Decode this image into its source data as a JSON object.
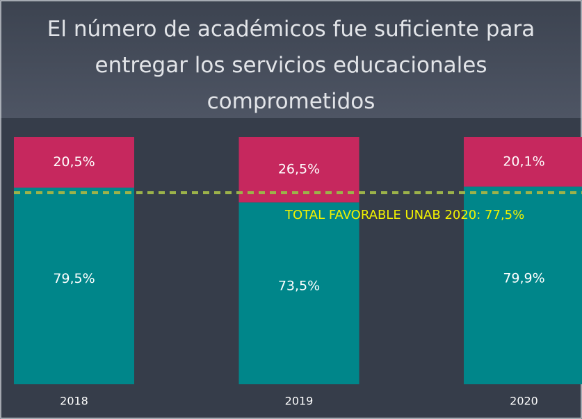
{
  "chart_data": {
    "type": "stacked_bar",
    "title": "El número de académicos fue suficiente para entregar los servicios educacionales comprometidos",
    "categories": [
      "2018",
      "2019",
      "2020"
    ],
    "series": [
      {
        "color": "#00868a",
        "values": [
          79.5,
          73.5,
          79.9
        ],
        "value_labels": [
          "79,5%",
          "73,5%",
          "79,9%"
        ]
      },
      {
        "color": "#c6285e",
        "values": [
          20.5,
          26.5,
          20.1
        ],
        "value_labels": [
          "20,5%",
          "26,5%",
          "20,1%"
        ]
      }
    ],
    "ylim": [
      0,
      100
    ],
    "reference_line": {
      "value": 77.5,
      "label": "TOTAL FAVORABLE UNAB 2020: 77,5%",
      "color": "#9cb24a",
      "label_color": "#f2f200"
    }
  }
}
